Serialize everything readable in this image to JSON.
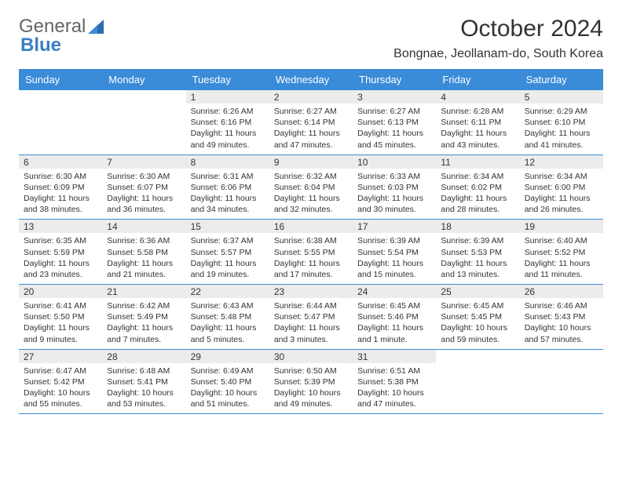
{
  "logo": {
    "general": "General",
    "blue": "Blue"
  },
  "title": "October 2024",
  "location": "Bongnae, Jeollanam-do, South Korea",
  "accent_color": "#3a8bd8",
  "dayheads": [
    "Sunday",
    "Monday",
    "Tuesday",
    "Wednesday",
    "Thursday",
    "Friday",
    "Saturday"
  ],
  "weeks": [
    [
      {
        "empty": true
      },
      {
        "empty": true
      },
      {
        "day": "1",
        "sunrise": "Sunrise: 6:26 AM",
        "sunset": "Sunset: 6:16 PM",
        "daylight1": "Daylight: 11 hours",
        "daylight2": "and 49 minutes."
      },
      {
        "day": "2",
        "sunrise": "Sunrise: 6:27 AM",
        "sunset": "Sunset: 6:14 PM",
        "daylight1": "Daylight: 11 hours",
        "daylight2": "and 47 minutes."
      },
      {
        "day": "3",
        "sunrise": "Sunrise: 6:27 AM",
        "sunset": "Sunset: 6:13 PM",
        "daylight1": "Daylight: 11 hours",
        "daylight2": "and 45 minutes."
      },
      {
        "day": "4",
        "sunrise": "Sunrise: 6:28 AM",
        "sunset": "Sunset: 6:11 PM",
        "daylight1": "Daylight: 11 hours",
        "daylight2": "and 43 minutes."
      },
      {
        "day": "5",
        "sunrise": "Sunrise: 6:29 AM",
        "sunset": "Sunset: 6:10 PM",
        "daylight1": "Daylight: 11 hours",
        "daylight2": "and 41 minutes."
      }
    ],
    [
      {
        "day": "6",
        "sunrise": "Sunrise: 6:30 AM",
        "sunset": "Sunset: 6:09 PM",
        "daylight1": "Daylight: 11 hours",
        "daylight2": "and 38 minutes."
      },
      {
        "day": "7",
        "sunrise": "Sunrise: 6:30 AM",
        "sunset": "Sunset: 6:07 PM",
        "daylight1": "Daylight: 11 hours",
        "daylight2": "and 36 minutes."
      },
      {
        "day": "8",
        "sunrise": "Sunrise: 6:31 AM",
        "sunset": "Sunset: 6:06 PM",
        "daylight1": "Daylight: 11 hours",
        "daylight2": "and 34 minutes."
      },
      {
        "day": "9",
        "sunrise": "Sunrise: 6:32 AM",
        "sunset": "Sunset: 6:04 PM",
        "daylight1": "Daylight: 11 hours",
        "daylight2": "and 32 minutes."
      },
      {
        "day": "10",
        "sunrise": "Sunrise: 6:33 AM",
        "sunset": "Sunset: 6:03 PM",
        "daylight1": "Daylight: 11 hours",
        "daylight2": "and 30 minutes."
      },
      {
        "day": "11",
        "sunrise": "Sunrise: 6:34 AM",
        "sunset": "Sunset: 6:02 PM",
        "daylight1": "Daylight: 11 hours",
        "daylight2": "and 28 minutes."
      },
      {
        "day": "12",
        "sunrise": "Sunrise: 6:34 AM",
        "sunset": "Sunset: 6:00 PM",
        "daylight1": "Daylight: 11 hours",
        "daylight2": "and 26 minutes."
      }
    ],
    [
      {
        "day": "13",
        "sunrise": "Sunrise: 6:35 AM",
        "sunset": "Sunset: 5:59 PM",
        "daylight1": "Daylight: 11 hours",
        "daylight2": "and 23 minutes."
      },
      {
        "day": "14",
        "sunrise": "Sunrise: 6:36 AM",
        "sunset": "Sunset: 5:58 PM",
        "daylight1": "Daylight: 11 hours",
        "daylight2": "and 21 minutes."
      },
      {
        "day": "15",
        "sunrise": "Sunrise: 6:37 AM",
        "sunset": "Sunset: 5:57 PM",
        "daylight1": "Daylight: 11 hours",
        "daylight2": "and 19 minutes."
      },
      {
        "day": "16",
        "sunrise": "Sunrise: 6:38 AM",
        "sunset": "Sunset: 5:55 PM",
        "daylight1": "Daylight: 11 hours",
        "daylight2": "and 17 minutes."
      },
      {
        "day": "17",
        "sunrise": "Sunrise: 6:39 AM",
        "sunset": "Sunset: 5:54 PM",
        "daylight1": "Daylight: 11 hours",
        "daylight2": "and 15 minutes."
      },
      {
        "day": "18",
        "sunrise": "Sunrise: 6:39 AM",
        "sunset": "Sunset: 5:53 PM",
        "daylight1": "Daylight: 11 hours",
        "daylight2": "and 13 minutes."
      },
      {
        "day": "19",
        "sunrise": "Sunrise: 6:40 AM",
        "sunset": "Sunset: 5:52 PM",
        "daylight1": "Daylight: 11 hours",
        "daylight2": "and 11 minutes."
      }
    ],
    [
      {
        "day": "20",
        "sunrise": "Sunrise: 6:41 AM",
        "sunset": "Sunset: 5:50 PM",
        "daylight1": "Daylight: 11 hours",
        "daylight2": "and 9 minutes."
      },
      {
        "day": "21",
        "sunrise": "Sunrise: 6:42 AM",
        "sunset": "Sunset: 5:49 PM",
        "daylight1": "Daylight: 11 hours",
        "daylight2": "and 7 minutes."
      },
      {
        "day": "22",
        "sunrise": "Sunrise: 6:43 AM",
        "sunset": "Sunset: 5:48 PM",
        "daylight1": "Daylight: 11 hours",
        "daylight2": "and 5 minutes."
      },
      {
        "day": "23",
        "sunrise": "Sunrise: 6:44 AM",
        "sunset": "Sunset: 5:47 PM",
        "daylight1": "Daylight: 11 hours",
        "daylight2": "and 3 minutes."
      },
      {
        "day": "24",
        "sunrise": "Sunrise: 6:45 AM",
        "sunset": "Sunset: 5:46 PM",
        "daylight1": "Daylight: 11 hours",
        "daylight2": "and 1 minute."
      },
      {
        "day": "25",
        "sunrise": "Sunrise: 6:45 AM",
        "sunset": "Sunset: 5:45 PM",
        "daylight1": "Daylight: 10 hours",
        "daylight2": "and 59 minutes."
      },
      {
        "day": "26",
        "sunrise": "Sunrise: 6:46 AM",
        "sunset": "Sunset: 5:43 PM",
        "daylight1": "Daylight: 10 hours",
        "daylight2": "and 57 minutes."
      }
    ],
    [
      {
        "day": "27",
        "sunrise": "Sunrise: 6:47 AM",
        "sunset": "Sunset: 5:42 PM",
        "daylight1": "Daylight: 10 hours",
        "daylight2": "and 55 minutes."
      },
      {
        "day": "28",
        "sunrise": "Sunrise: 6:48 AM",
        "sunset": "Sunset: 5:41 PM",
        "daylight1": "Daylight: 10 hours",
        "daylight2": "and 53 minutes."
      },
      {
        "day": "29",
        "sunrise": "Sunrise: 6:49 AM",
        "sunset": "Sunset: 5:40 PM",
        "daylight1": "Daylight: 10 hours",
        "daylight2": "and 51 minutes."
      },
      {
        "day": "30",
        "sunrise": "Sunrise: 6:50 AM",
        "sunset": "Sunset: 5:39 PM",
        "daylight1": "Daylight: 10 hours",
        "daylight2": "and 49 minutes."
      },
      {
        "day": "31",
        "sunrise": "Sunrise: 6:51 AM",
        "sunset": "Sunset: 5:38 PM",
        "daylight1": "Daylight: 10 hours",
        "daylight2": "and 47 minutes."
      },
      {
        "empty": true
      },
      {
        "empty": true
      }
    ]
  ]
}
